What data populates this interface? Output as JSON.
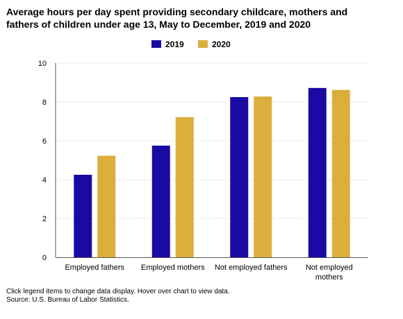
{
  "title_lines": [
    "Average hours per day spent providing secondary childcare, mothers and",
    "fathers of children under age 13, May to December, 2019 and 2020"
  ],
  "footer": {
    "note": "Click legend items to change data display. Hover over chart to view data.",
    "source": "Source: U.S. Bureau of Labor Statistics."
  },
  "colors": {
    "2019": "#1a0aa3",
    "2020": "#dcae3c"
  },
  "chart_data": {
    "type": "bar",
    "title": "Average hours per day spent providing secondary childcare, mothers and fathers of children under age 13, May to December, 2019 and 2020",
    "categories": [
      [
        "Employed fathers"
      ],
      [
        "Employed mothers"
      ],
      [
        "Not employed fathers"
      ],
      [
        "Not employed",
        "mothers"
      ]
    ],
    "series": [
      {
        "name": "2019",
        "values": [
          4.25,
          5.75,
          8.25,
          8.72
        ]
      },
      {
        "name": "2020",
        "values": [
          5.23,
          7.22,
          8.28,
          8.62
        ]
      }
    ],
    "yticks": [
      "0",
      "2",
      "4",
      "6",
      "8",
      "10"
    ],
    "ylim": [
      0,
      10
    ],
    "xlabel": "",
    "ylabel": "",
    "grid": true,
    "legend": "top-center"
  }
}
